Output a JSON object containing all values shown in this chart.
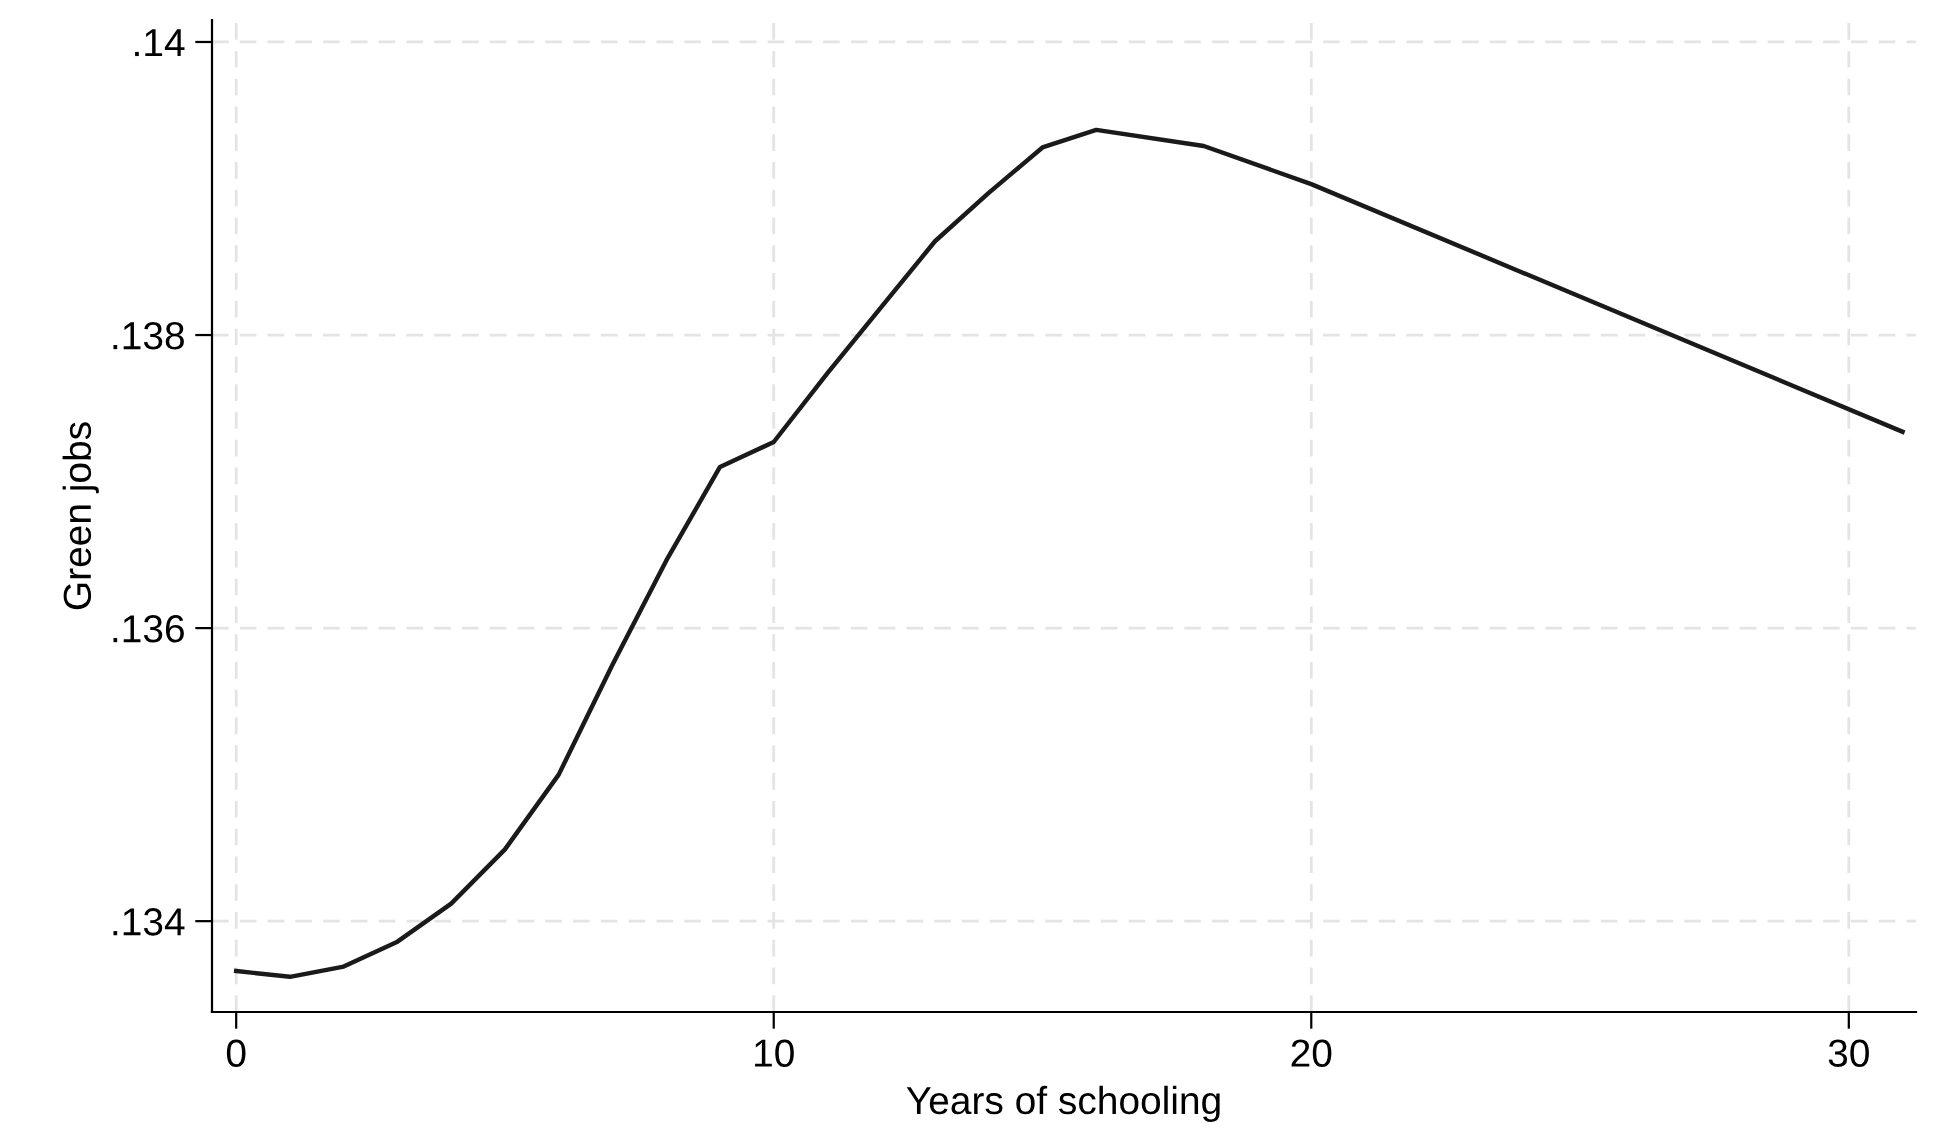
{
  "chart_data": {
    "type": "line",
    "xlabel": "Years of schooling",
    "ylabel": "Green jobs",
    "x": [
      0,
      1,
      2,
      3,
      4,
      5,
      6,
      7,
      8,
      9,
      10,
      11,
      12,
      13,
      14,
      15,
      16,
      18,
      20,
      31
    ],
    "series": [
      {
        "color": "#1a1a1a",
        "values": [
          0.13366,
          0.13362,
          0.13369,
          0.13386,
          0.13412,
          0.13449,
          0.135,
          0.13575,
          0.13646,
          0.1371,
          0.13727,
          0.13774,
          0.13819,
          0.13864,
          0.13897,
          0.13928,
          0.1394,
          0.13929,
          0.13903,
          0.13734
        ]
      }
    ],
    "xlim": [
      -0.45,
      31.25
    ],
    "ylim": [
      0.13338,
      0.14015
    ],
    "xticks": [
      0,
      10,
      20,
      30
    ],
    "yticks": [
      {
        "value": 0.134,
        "label": ".134"
      },
      {
        "value": 0.136,
        "label": ".136"
      },
      {
        "value": 0.138,
        "label": ".138"
      },
      {
        "value": 0.14,
        "label": ".14"
      }
    ],
    "grid": true,
    "line_style": "solid",
    "marker": "none"
  }
}
